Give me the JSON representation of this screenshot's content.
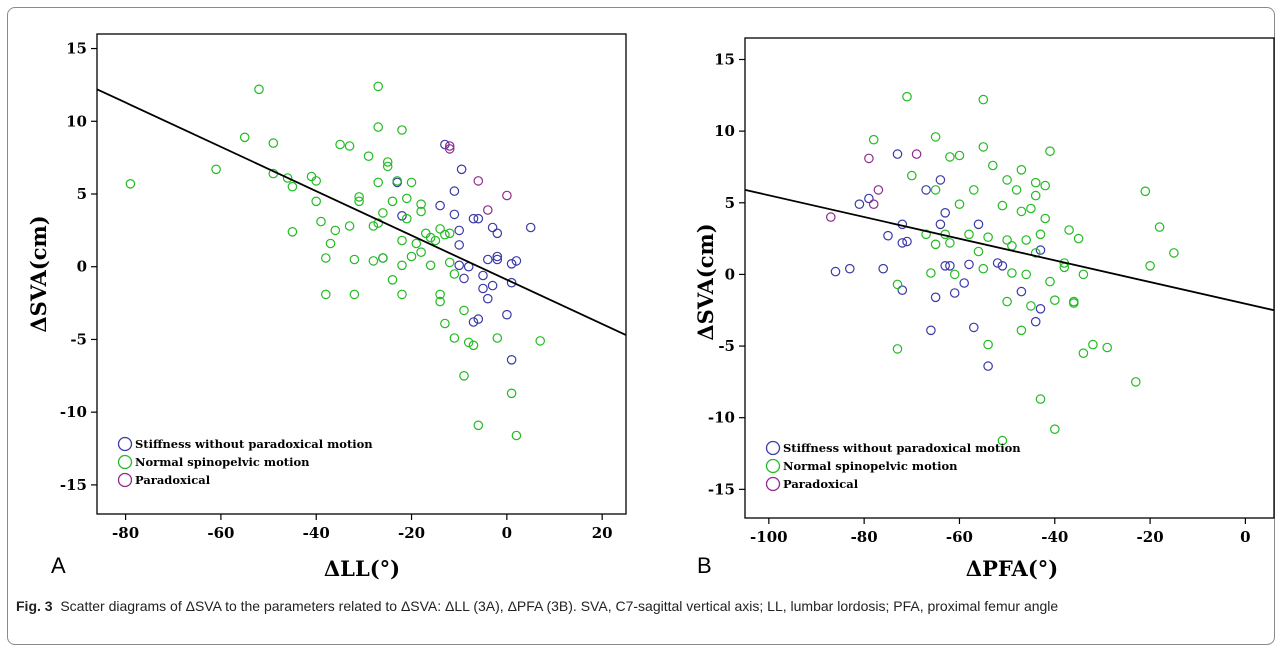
{
  "caption": {
    "label": "Fig. 3",
    "text": "Scatter diagrams of ΔSVA to the parameters related to ΔSVA: ΔLL (3A), ΔPFA (3B). SVA, C7-sagittal vertical axis; LL, lumbar lordosis; PFA, proximal femur angle"
  },
  "colors": {
    "stiffness": "#3a3aa8",
    "normal": "#22bb22",
    "paradoxical": "#8e2a8e",
    "regression": "#000000"
  },
  "chart_data": [
    {
      "type": "scatter",
      "panel": "A",
      "xlabel": "ΔLL(°)",
      "ylabel": "ΔSVA(cm)",
      "xlim": [
        -86,
        25
      ],
      "ylim": [
        -17,
        16
      ],
      "xticks": [
        -80,
        -60,
        -40,
        -20,
        0,
        20
      ],
      "yticks": [
        -15,
        -10,
        -5,
        0,
        5,
        10,
        15
      ],
      "grid": false,
      "legend_position": "bottom-left",
      "regression_line": {
        "x": [
          -86,
          25
        ],
        "y": [
          12.2,
          -4.7
        ]
      },
      "series": [
        {
          "name": "Stiffness without paradoxical motion",
          "color_key": "stiffness",
          "points": [
            [
              -13,
              8.4
            ],
            [
              -9.5,
              6.7
            ],
            [
              -11,
              5.2
            ],
            [
              -23,
              5.8
            ],
            [
              -22,
              3.5
            ],
            [
              -14,
              4.2
            ],
            [
              -11,
              3.6
            ],
            [
              -10,
              2.5
            ],
            [
              -7,
              3.3
            ],
            [
              -6,
              3.3
            ],
            [
              -10,
              1.5
            ],
            [
              -3,
              2.7
            ],
            [
              -2,
              2.3
            ],
            [
              5,
              2.7
            ],
            [
              -26,
              0.6
            ],
            [
              -8,
              0
            ],
            [
              -4,
              0.5
            ],
            [
              -2,
              0.7
            ],
            [
              -2,
              0.5
            ],
            [
              1,
              0.2
            ],
            [
              2,
              0.4
            ],
            [
              -5,
              -0.6
            ],
            [
              -5,
              -1.5
            ],
            [
              -3,
              -1.3
            ],
            [
              1,
              -1.1
            ],
            [
              -7,
              -3.8
            ],
            [
              -6,
              -3.6
            ],
            [
              0,
              -3.3
            ],
            [
              1,
              -6.4
            ],
            [
              -10,
              0.1
            ],
            [
              -4,
              -2.2
            ],
            [
              -9,
              -0.8
            ]
          ]
        },
        {
          "name": "Normal spinopelvic motion",
          "color_key": "normal",
          "points": [
            [
              -79,
              5.7
            ],
            [
              -61,
              6.7
            ],
            [
              -52,
              12.2
            ],
            [
              -27,
              12.4
            ],
            [
              -55,
              8.9
            ],
            [
              -49,
              8.5
            ],
            [
              -27,
              9.6
            ],
            [
              -22,
              9.4
            ],
            [
              -35,
              8.4
            ],
            [
              -33,
              8.3
            ],
            [
              -29,
              7.6
            ],
            [
              -25,
              7.2
            ],
            [
              -25,
              6.9
            ],
            [
              -41,
              6.2
            ],
            [
              -46,
              6.1
            ],
            [
              -49,
              6.4
            ],
            [
              -45,
              5.5
            ],
            [
              -40,
              5.9
            ],
            [
              -27,
              5.8
            ],
            [
              -23,
              5.9
            ],
            [
              -20,
              5.8
            ],
            [
              -31,
              4.8
            ],
            [
              -31,
              4.5
            ],
            [
              -24,
              4.5
            ],
            [
              -21,
              4.7
            ],
            [
              -18,
              4.3
            ],
            [
              -18,
              3.8
            ],
            [
              -40,
              4.5
            ],
            [
              -39,
              3.1
            ],
            [
              -26,
              3.7
            ],
            [
              -21,
              3.3
            ],
            [
              -28,
              2.8
            ],
            [
              -27,
              3
            ],
            [
              -33,
              2.8
            ],
            [
              -36,
              2.5
            ],
            [
              -37,
              1.6
            ],
            [
              -22,
              1.8
            ],
            [
              -19,
              1.6
            ],
            [
              -17,
              2.3
            ],
            [
              -14,
              2.6
            ],
            [
              -13,
              2.2
            ],
            [
              -12,
              2.3
            ],
            [
              -15,
              1.8
            ],
            [
              -16,
              2
            ],
            [
              -45,
              2.4
            ],
            [
              -38,
              0.6
            ],
            [
              -32,
              0.5
            ],
            [
              -28,
              0.4
            ],
            [
              -26,
              0.6
            ],
            [
              -22,
              0.1
            ],
            [
              -20,
              0.7
            ],
            [
              -18,
              1
            ],
            [
              -16,
              0.1
            ],
            [
              -12,
              0.3
            ],
            [
              -11,
              -0.5
            ],
            [
              -24,
              -0.9
            ],
            [
              -22,
              -1.9
            ],
            [
              -38,
              -1.9
            ],
            [
              -32,
              -1.9
            ],
            [
              -14,
              -1.9
            ],
            [
              -14,
              -2.4
            ],
            [
              -13,
              -3.9
            ],
            [
              -9,
              -3
            ],
            [
              -11,
              -4.9
            ],
            [
              -8,
              -5.2
            ],
            [
              -7,
              -5.4
            ],
            [
              -2,
              -4.9
            ],
            [
              7,
              -5.1
            ],
            [
              -9,
              -7.5
            ],
            [
              1,
              -8.7
            ],
            [
              -6,
              -10.9
            ],
            [
              2,
              -11.6
            ]
          ]
        },
        {
          "name": "Paradoxical",
          "color_key": "paradoxical",
          "points": [
            [
              -12,
              8.3
            ],
            [
              -12,
              8.1
            ],
            [
              -6,
              5.9
            ],
            [
              -4,
              3.9
            ],
            [
              0,
              4.9
            ]
          ]
        }
      ]
    },
    {
      "type": "scatter",
      "panel": "B",
      "xlabel": "ΔPFA(°)",
      "ylabel": "ΔSVA(cm)",
      "xlim": [
        -105,
        6
      ],
      "ylim": [
        -17,
        16.5
      ],
      "xticks": [
        -100,
        -80,
        -60,
        -40,
        -20,
        0
      ],
      "yticks": [
        -15,
        -10,
        -5,
        0,
        5,
        10,
        15
      ],
      "grid": false,
      "legend_position": "bottom-left",
      "regression_line": {
        "x": [
          -105,
          6
        ],
        "y": [
          5.9,
          -2.5
        ]
      },
      "series": [
        {
          "name": "Stiffness without paradoxical motion",
          "color_key": "stiffness",
          "points": [
            [
              -86,
              0.2
            ],
            [
              -83,
              0.4
            ],
            [
              -81,
              4.9
            ],
            [
              -79,
              5.3
            ],
            [
              -73,
              8.4
            ],
            [
              -72,
              3.5
            ],
            [
              -71,
              2.3
            ],
            [
              -75,
              2.7
            ],
            [
              -72,
              2.2
            ],
            [
              -67,
              5.9
            ],
            [
              -64,
              6.6
            ],
            [
              -63,
              4.3
            ],
            [
              -64,
              3.5
            ],
            [
              -63,
              0.6
            ],
            [
              -62,
              0.6
            ],
            [
              -58,
              0.7
            ],
            [
              -56,
              3.5
            ],
            [
              -52,
              0.8
            ],
            [
              -51,
              0.6
            ],
            [
              -76,
              0.4
            ],
            [
              -72,
              -1.1
            ],
            [
              -65,
              -1.6
            ],
            [
              -61,
              -1.3
            ],
            [
              -59,
              -0.6
            ],
            [
              -57,
              -3.7
            ],
            [
              -66,
              -3.9
            ],
            [
              -54,
              -6.4
            ],
            [
              -47,
              -1.2
            ],
            [
              -44,
              -3.3
            ],
            [
              -43,
              -2.4
            ],
            [
              -43,
              1.7
            ]
          ]
        },
        {
          "name": "Normal spinopelvic motion",
          "color_key": "normal",
          "points": [
            [
              -71,
              12.4
            ],
            [
              -55,
              12.2
            ],
            [
              -78,
              9.4
            ],
            [
              -65,
              9.6
            ],
            [
              -55,
              8.9
            ],
            [
              -41,
              8.6
            ],
            [
              -62,
              8.2
            ],
            [
              -60,
              8.3
            ],
            [
              -53,
              7.6
            ],
            [
              -47,
              7.3
            ],
            [
              -70,
              6.9
            ],
            [
              -50,
              6.6
            ],
            [
              -44,
              6.4
            ],
            [
              -42,
              6.2
            ],
            [
              -65,
              5.9
            ],
            [
              -57,
              5.9
            ],
            [
              -48,
              5.9
            ],
            [
              -44,
              5.5
            ],
            [
              -21,
              5.8
            ],
            [
              -60,
              4.9
            ],
            [
              -51,
              4.8
            ],
            [
              -47,
              4.4
            ],
            [
              -45,
              4.6
            ],
            [
              -42,
              3.9
            ],
            [
              -37,
              3.1
            ],
            [
              -18,
              3.3
            ],
            [
              -67,
              2.8
            ],
            [
              -63,
              2.8
            ],
            [
              -58,
              2.8
            ],
            [
              -54,
              2.6
            ],
            [
              -50,
              2.4
            ],
            [
              -46,
              2.4
            ],
            [
              -43,
              2.8
            ],
            [
              -35,
              2.5
            ],
            [
              -65,
              2.1
            ],
            [
              -62,
              2.2
            ],
            [
              -56,
              1.6
            ],
            [
              -49,
              2
            ],
            [
              -44,
              1.5
            ],
            [
              -15,
              1.5
            ],
            [
              -73,
              -0.7
            ],
            [
              -66,
              0.1
            ],
            [
              -61,
              0
            ],
            [
              -55,
              0.4
            ],
            [
              -49,
              0.1
            ],
            [
              -46,
              0
            ],
            [
              -41,
              -0.5
            ],
            [
              -38,
              0.8
            ],
            [
              -38,
              0.5
            ],
            [
              -34,
              0
            ],
            [
              -20,
              0.6
            ],
            [
              -50,
              -1.9
            ],
            [
              -45,
              -2.2
            ],
            [
              -36,
              -1.9
            ],
            [
              -36,
              -2
            ],
            [
              -40,
              -1.8
            ],
            [
              -54,
              -4.9
            ],
            [
              -47,
              -3.9
            ],
            [
              -34,
              -5.5
            ],
            [
              -32,
              -4.9
            ],
            [
              -29,
              -5.1
            ],
            [
              -23,
              -7.5
            ],
            [
              -73,
              -5.2
            ],
            [
              -43,
              -8.7
            ],
            [
              -40,
              -10.8
            ],
            [
              -51,
              -11.6
            ]
          ]
        },
        {
          "name": "Paradoxical",
          "color_key": "paradoxical",
          "points": [
            [
              -87,
              4
            ],
            [
              -79,
              8.1
            ],
            [
              -78,
              4.9
            ],
            [
              -77,
              5.9
            ],
            [
              -69,
              8.4
            ]
          ]
        }
      ]
    }
  ]
}
